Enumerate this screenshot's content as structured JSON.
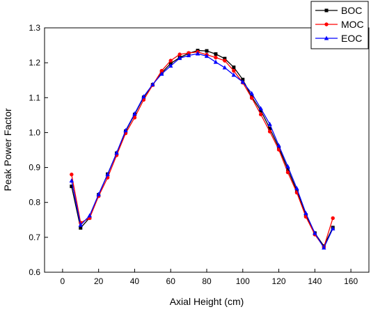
{
  "chart_data": {
    "type": "line",
    "xlabel": "Axial Height (cm)",
    "ylabel": "Peak Power Factor",
    "xlim": [
      -10,
      170
    ],
    "ylim": [
      0.6,
      1.3
    ],
    "xticks": [
      0,
      20,
      40,
      60,
      80,
      100,
      120,
      140,
      160
    ],
    "yticks": [
      0.6,
      0.7,
      0.8,
      0.9,
      1.0,
      1.1,
      1.2,
      1.3
    ],
    "xtick_labels": [
      "0",
      "20",
      "40",
      "60",
      "80",
      "100",
      "120",
      "140",
      "160"
    ],
    "ytick_labels": [
      "0.6",
      "0.7",
      "0.8",
      "0.9",
      "1.0",
      "1.1",
      "1.2",
      "1.3"
    ],
    "grid": false,
    "legend_position": "top-right",
    "x": [
      5,
      10,
      15,
      20,
      25,
      30,
      35,
      40,
      45,
      50,
      55,
      60,
      65,
      70,
      75,
      80,
      85,
      90,
      95,
      100,
      105,
      110,
      115,
      120,
      125,
      130,
      135,
      140,
      145,
      150
    ],
    "series": [
      {
        "name": "BOC",
        "color": "#000000",
        "marker": "square",
        "values": [
          0.846,
          0.727,
          0.756,
          0.822,
          0.881,
          0.941,
          1.004,
          1.052,
          1.101,
          1.137,
          1.171,
          1.198,
          1.215,
          1.227,
          1.235,
          1.234,
          1.225,
          1.212,
          1.187,
          1.152,
          1.102,
          1.063,
          1.012,
          0.957,
          0.895,
          0.833,
          0.764,
          0.712,
          0.675,
          0.728
        ]
      },
      {
        "name": "MOC",
        "color": "#ff0000",
        "marker": "circle",
        "values": [
          0.88,
          0.742,
          0.755,
          0.818,
          0.871,
          0.935,
          0.998,
          1.043,
          1.094,
          1.136,
          1.177,
          1.206,
          1.224,
          1.228,
          1.231,
          1.223,
          1.215,
          1.206,
          1.177,
          1.143,
          1.099,
          1.052,
          1.003,
          0.951,
          0.886,
          0.828,
          0.759,
          0.708,
          0.672,
          0.755
        ]
      },
      {
        "name": "EOC",
        "color": "#0000ff",
        "marker": "triangle",
        "values": [
          0.862,
          0.735,
          0.762,
          0.823,
          0.88,
          0.942,
          1.006,
          1.054,
          1.103,
          1.138,
          1.168,
          1.191,
          1.213,
          1.221,
          1.226,
          1.219,
          1.202,
          1.186,
          1.165,
          1.145,
          1.112,
          1.069,
          1.024,
          0.963,
          0.903,
          0.84,
          0.769,
          0.712,
          0.67,
          0.725
        ]
      }
    ]
  }
}
